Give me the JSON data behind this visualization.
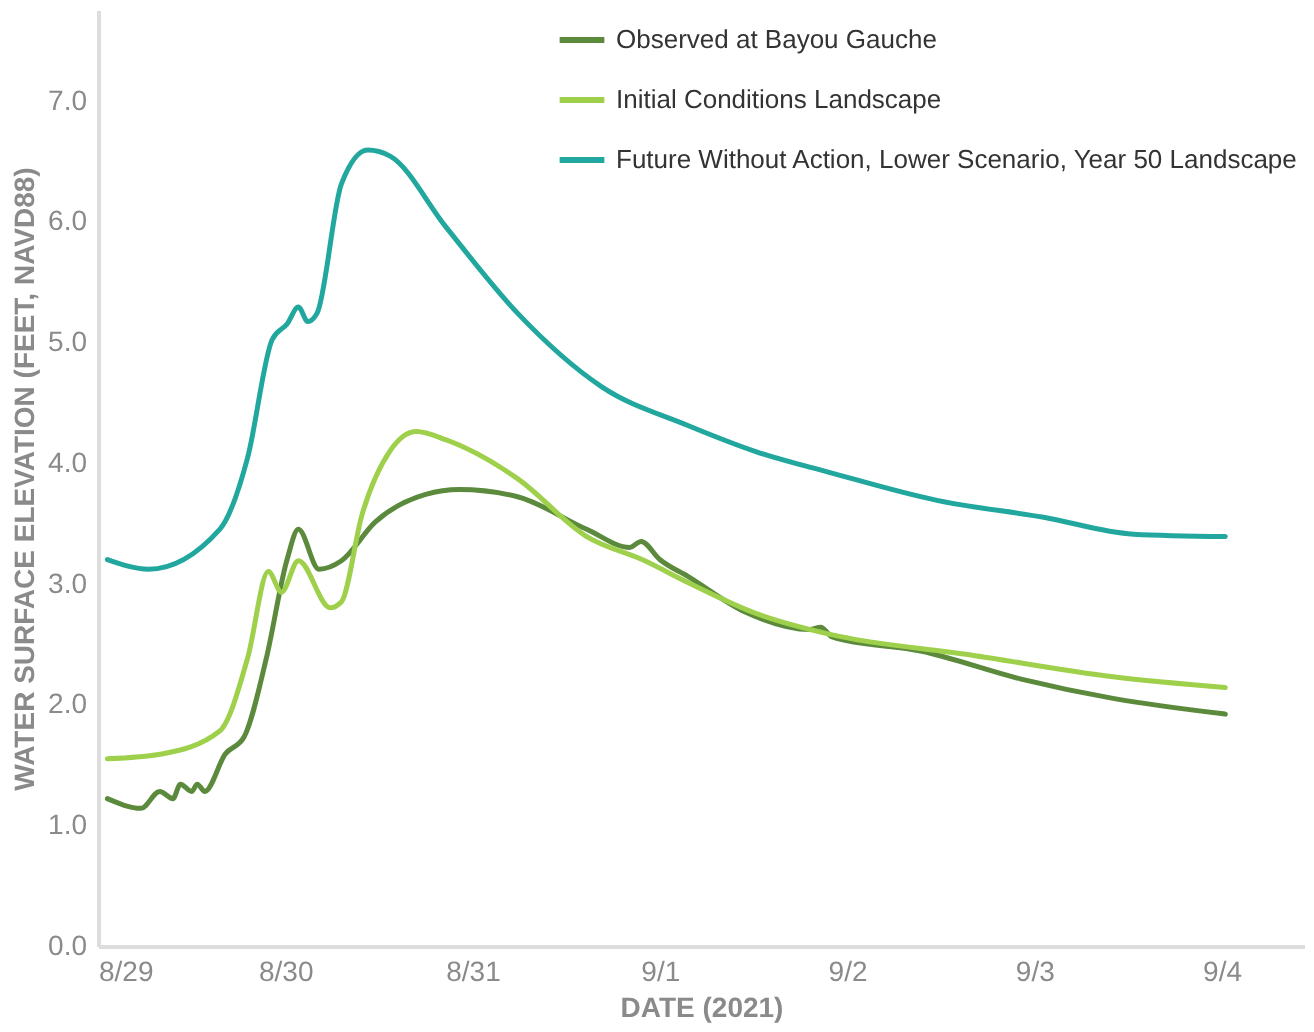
{
  "chart_data": {
    "type": "line",
    "xlabel": "DATE (2021)",
    "ylabel": "WATER SURFACE ELEVATION (FEET, NAVD88)",
    "xlim": [
      "2021-08-29",
      "2021-09-04T10:34"
    ],
    "ylim": [
      0,
      7.75
    ],
    "xticks": [
      {
        "value": "2021-08-29",
        "label": "8/29"
      },
      {
        "value": "2021-08-30",
        "label": "8/30"
      },
      {
        "value": "2021-08-31",
        "label": "8/31"
      },
      {
        "value": "2021-09-01",
        "label": "9/1"
      },
      {
        "value": "2021-09-02",
        "label": "9/2"
      },
      {
        "value": "2021-09-03",
        "label": "9/3"
      },
      {
        "value": "2021-09-04",
        "label": "9/4"
      }
    ],
    "yticks": [
      {
        "value": 0,
        "label": "0.0"
      },
      {
        "value": 1,
        "label": "1.0"
      },
      {
        "value": 2,
        "label": "2.0"
      },
      {
        "value": 3,
        "label": "3.0"
      },
      {
        "value": 4,
        "label": "4.0"
      },
      {
        "value": 5,
        "label": "5.0"
      },
      {
        "value": 6,
        "label": "6.0"
      },
      {
        "value": 7,
        "label": "7.0"
      }
    ],
    "grid": false,
    "legend": "top right",
    "marker": "none",
    "line_style": "solid",
    "series": [
      {
        "name": "Observed at Bayou Gauche",
        "color": "#5b8a3c",
        "x": [
          "2021-08-29T01:12",
          "2021-08-29T05:31",
          "2021-08-29T07:55",
          "2021-08-29T09:36",
          "2021-08-29T10:34",
          "2021-08-29T12:00",
          "2021-08-29T12:43",
          "2021-08-29T13:41",
          "2021-08-29T16:19",
          "2021-08-29T18:43",
          "2021-08-29T21:36",
          "2021-08-30T00:14",
          "2021-08-30T01:41",
          "2021-08-30T04:19",
          "2021-08-30T07:12",
          "2021-08-30T11:31",
          "2021-08-30T18:00",
          "2021-08-30T22:19",
          "2021-08-31T05:46",
          "2021-08-31T14:38",
          "2021-08-31T20:10",
          "2021-08-31T21:36",
          "2021-09-01T00:00",
          "2021-09-01T03:36",
          "2021-09-01T10:48",
          "2021-09-01T19:12",
          "2021-09-01T20:38",
          "2021-09-01T22:05",
          "2021-09-02T09:36",
          "2021-09-02T22:19",
          "2021-09-03T10:05",
          "2021-09-04T00:29"
        ],
        "values": [
          1.22,
          1.14,
          1.28,
          1.22,
          1.34,
          1.28,
          1.34,
          1.28,
          1.59,
          1.73,
          2.39,
          3.2,
          3.45,
          3.12,
          3.19,
          3.51,
          3.74,
          3.78,
          3.72,
          3.45,
          3.3,
          3.35,
          3.2,
          3.06,
          2.77,
          2.62,
          2.64,
          2.56,
          2.44,
          2.21,
          2.05,
          1.92
        ]
      },
      {
        "name": "Initial Conditions Landscape",
        "color": "#9fd04c",
        "x": [
          "2021-08-29T01:12",
          "2021-08-29T08:10",
          "2021-08-29T15:36",
          "2021-08-29T19:12",
          "2021-08-29T21:50",
          "2021-08-29T23:31",
          "2021-08-30T01:41",
          "2021-08-30T05:46",
          "2021-08-30T07:12",
          "2021-08-30T09:50",
          "2021-08-30T13:26",
          "2021-08-30T16:48",
          "2021-08-30T20:38",
          "2021-08-31T05:46",
          "2021-08-31T14:38",
          "2021-08-31T22:05",
          "2021-09-01T03:36",
          "2021-09-01T12:29",
          "2021-09-01T21:50",
          "2021-09-02T15:50",
          "2021-09-03T10:05",
          "2021-09-04T00:29"
        ],
        "values": [
          1.55,
          1.59,
          1.78,
          2.39,
          3.1,
          2.93,
          3.19,
          2.8,
          2.85,
          3.57,
          4.1,
          4.26,
          4.19,
          3.87,
          3.39,
          3.19,
          3.01,
          2.75,
          2.58,
          2.41,
          2.23,
          2.14
        ]
      },
      {
        "name": "Future Without Action, Lower Scenario, Year 50 Landscape",
        "color": "#22a79f",
        "x": [
          "2021-08-29T01:12",
          "2021-08-29T06:29",
          "2021-08-29T15:36",
          "2021-08-29T19:12",
          "2021-08-29T22:19",
          "2021-08-30T00:14",
          "2021-08-30T01:41",
          "2021-08-30T02:53",
          "2021-08-30T04:05",
          "2021-08-30T07:12",
          "2021-08-30T10:34",
          "2021-08-30T13:26",
          "2021-08-30T20:38",
          "2021-08-31T05:46",
          "2021-08-31T16:34",
          "2021-09-01T03:36",
          "2021-09-01T12:29",
          "2021-09-01T21:50",
          "2021-09-02T11:31",
          "2021-09-03T01:12",
          "2021-09-03T12:43",
          "2021-09-04T00:29"
        ],
        "values": [
          3.2,
          3.12,
          3.45,
          4.05,
          5.02,
          5.15,
          5.29,
          5.17,
          5.24,
          6.31,
          6.59,
          6.54,
          5.95,
          5.24,
          4.63,
          4.31,
          4.09,
          3.92,
          3.69,
          3.55,
          3.41,
          3.39
        ]
      }
    ]
  }
}
